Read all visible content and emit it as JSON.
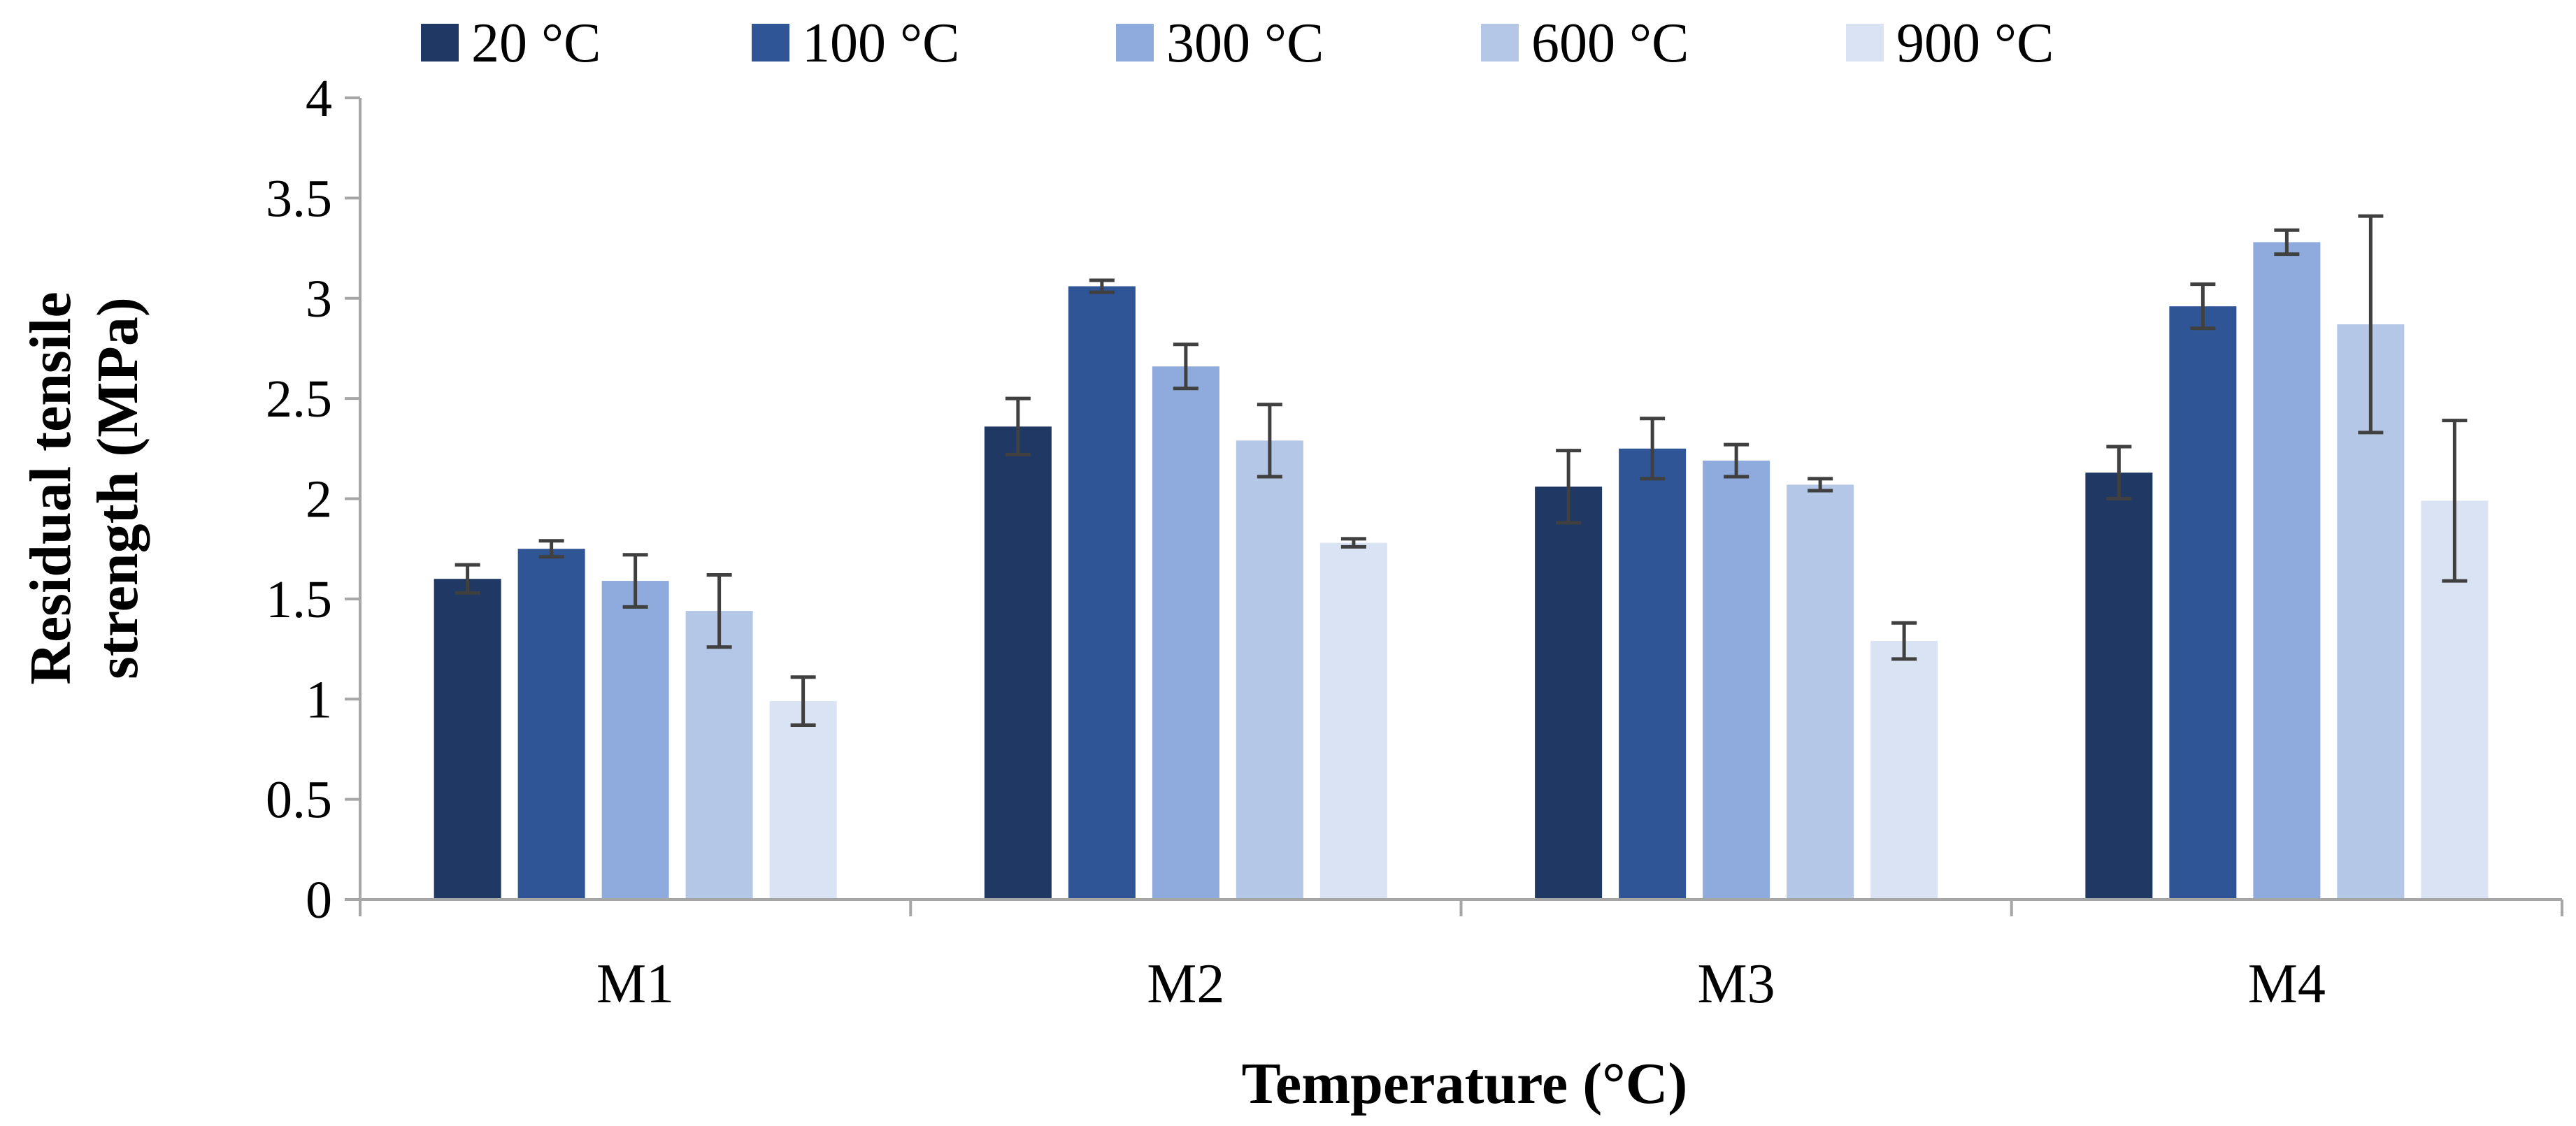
{
  "chart_data": {
    "type": "bar",
    "title": "",
    "xlabel": "Temperature (°C)",
    "ylabel_lines": [
      "Residual tensile",
      "strength (MPa)"
    ],
    "categories": [
      "M1",
      "M2",
      "M3",
      "M4"
    ],
    "ylim": [
      0,
      4
    ],
    "yticks": [
      0,
      0.5,
      1,
      1.5,
      2,
      2.5,
      3,
      3.5,
      4
    ],
    "ytick_labels": [
      "0",
      "0.5",
      "1",
      "1.5",
      "2",
      "2.5",
      "3",
      "3.5",
      "4"
    ],
    "grid": false,
    "legend_position": "top",
    "series": [
      {
        "name": "20 °C",
        "color": "#203864",
        "values": [
          1.6,
          2.36,
          2.06,
          2.13
        ],
        "errors": [
          0.07,
          0.14,
          0.18,
          0.13
        ]
      },
      {
        "name": "100 °C",
        "color": "#2F5597",
        "values": [
          1.75,
          3.06,
          2.25,
          2.96
        ],
        "errors": [
          0.04,
          0.03,
          0.15,
          0.11
        ]
      },
      {
        "name": "300 °C",
        "color": "#8FAADC",
        "values": [
          1.59,
          2.66,
          2.19,
          3.28
        ],
        "errors": [
          0.13,
          0.11,
          0.08,
          0.06
        ]
      },
      {
        "name": "600 °C",
        "color": "#B4C7E7",
        "values": [
          1.44,
          2.29,
          2.07,
          2.87
        ],
        "errors": [
          0.18,
          0.18,
          0.03,
          0.54
        ]
      },
      {
        "name": "900 °C",
        "color": "#DAE3F3",
        "values": [
          0.99,
          1.78,
          1.29,
          1.99
        ],
        "errors": [
          0.12,
          0.02,
          0.09,
          0.4
        ]
      }
    ],
    "error_bar_color": "#404040",
    "axis_color": "#A6A6A6"
  }
}
